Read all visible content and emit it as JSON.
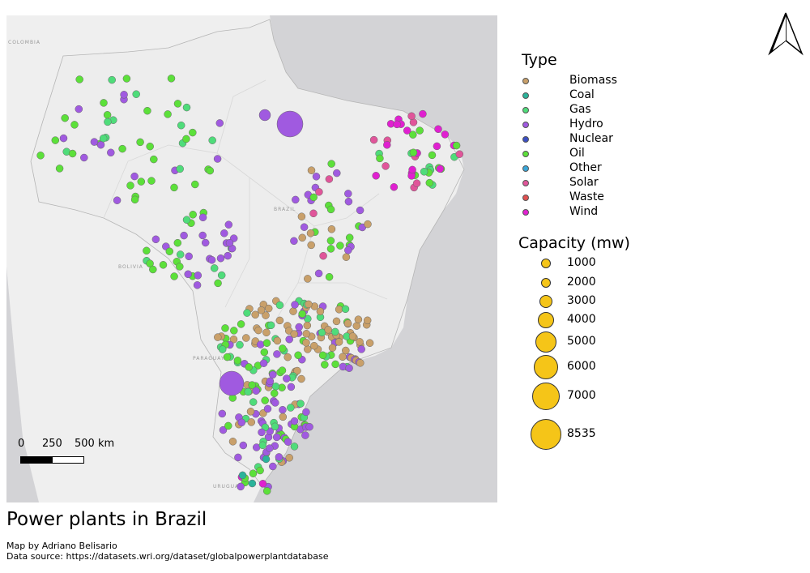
{
  "map": {
    "title": "Power plants in Brazil",
    "author_line": "Map by Adriano Belisario",
    "source_line": "Data source: https://datasets.wri.org/dataset/globalpowerplantdatabase",
    "country_labels": [
      "COLOMBIA",
      "BOLIVIA",
      "BRAZIL",
      "PARAGUAY",
      "URUGUAY"
    ],
    "colors": {
      "ocean": "#d3d3d6",
      "land": "#efefef",
      "brazil_land": "#ededed",
      "border": "#b5b5b5",
      "capacity_fill": "#f5c518"
    }
  },
  "legend": {
    "type_title": "Type",
    "types": [
      {
        "label": "Biomass",
        "color": "#c9a06a"
      },
      {
        "label": "Coal",
        "color": "#2bb39a"
      },
      {
        "label": "Gas",
        "color": "#4fdc7a"
      },
      {
        "label": "Hydro",
        "color": "#a05ae0"
      },
      {
        "label": "Nuclear",
        "color": "#3b4fc4"
      },
      {
        "label": "Oil",
        "color": "#5ce03a"
      },
      {
        "label": "Other",
        "color": "#3aa6d8"
      },
      {
        "label": "Solar",
        "color": "#e0559a"
      },
      {
        "label": "Waste",
        "color": "#e05050"
      },
      {
        "label": "Wind",
        "color": "#e020d0"
      }
    ],
    "capacity_title": "Capacity (mw)",
    "capacities": [
      "1000",
      "2000",
      "3000",
      "4000",
      "5000",
      "6000",
      "7000",
      "8535"
    ]
  },
  "scale": {
    "labels": [
      "0",
      "250",
      "500 km"
    ]
  },
  "north_arrow": {
    "icon": "north-arrow-icon"
  }
}
